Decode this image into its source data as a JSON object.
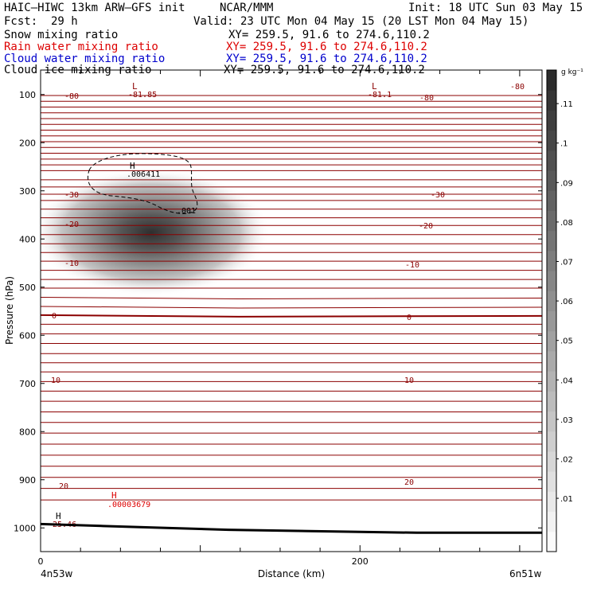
{
  "header": {
    "model": "HAIC—HIWC 13km ARW—GFS init",
    "org": "NCAR/MMM",
    "init": "Init: 18 UTC Sun 03 May 15",
    "fcst_label": "Fcst:",
    "fcst_value": "29 h",
    "valid": "Valid: 23 UTC Mon 04 May 15 (20 LST Mon 04 May 15)",
    "fields": [
      {
        "name": "Snow mixing ratio",
        "xy": "XY= 259.5, 91.6 to 274.6,110.2",
        "color": "#000000"
      },
      {
        "name": "Rain water mixing ratio",
        "xy": "XY= 259.5, 91.6 to 274.6,110.2",
        "color": "#dd0000"
      },
      {
        "name": "Cloud water mixing ratio",
        "xy": "XY= 259.5, 91.6 to 274.6,110.2",
        "color": "#0000cc"
      },
      {
        "name": "Cloud ice mixing ratio",
        "xy": "XY= 259.5, 91.6 to 274.6,110.2",
        "color": "#000000"
      }
    ]
  },
  "chart_data": {
    "type": "heatmap",
    "ylabel": "Pressure (hPa)",
    "xlabel": "Distance (km)",
    "x_ticks": [
      "0",
      "200"
    ],
    "xlim": [
      0,
      314
    ],
    "ylim": [
      1050,
      50
    ],
    "y_ticks": [
      "100",
      "200",
      "300",
      "400",
      "500",
      "600",
      "700",
      "800",
      "900",
      "1000"
    ],
    "x_endpoints": {
      "left": "4n53w",
      "right": "6n51w"
    },
    "colorbar": {
      "unit": "g kg⁻¹",
      "ticks": [
        ".01",
        ".02",
        ".03",
        ".04",
        ".05",
        ".06",
        ".07",
        ".08",
        ".09",
        ".1",
        ".11"
      ],
      "vmin": 0,
      "vmax": 0.12
    },
    "snow_blob": {
      "center_x_km": 75,
      "center_p_hpa": 385,
      "peak": 0.11
    },
    "cloud_ice_contour": {
      "label": ".001",
      "max_label": "H",
      "max_value": ".006411"
    },
    "rain_max": {
      "label": "H",
      "value": ".00003679"
    },
    "temperature_contours": [
      {
        "label": "-80"
      },
      {
        "label": "-30",
        "p": 307
      },
      {
        "label": "-20",
        "p": 372
      },
      {
        "label": "-10",
        "p": 446
      },
      {
        "label": "0",
        "p": 558
      },
      {
        "label": "10",
        "p": 696
      },
      {
        "label": "20",
        "p": 911
      }
    ],
    "temperature_extrema": [
      {
        "label": "L",
        "value": "-81.85"
      },
      {
        "label": "L",
        "value": "-81.1"
      },
      {
        "label": "H",
        "value": "25.46"
      }
    ],
    "terrain_p": [
      992,
      996,
      1000,
      1004,
      1006,
      1008,
      1010,
      1010,
      1010
    ]
  },
  "style": {
    "contour_color": "#8b0000",
    "axis_color": "#000000",
    "rain_color": "#dd0000"
  }
}
